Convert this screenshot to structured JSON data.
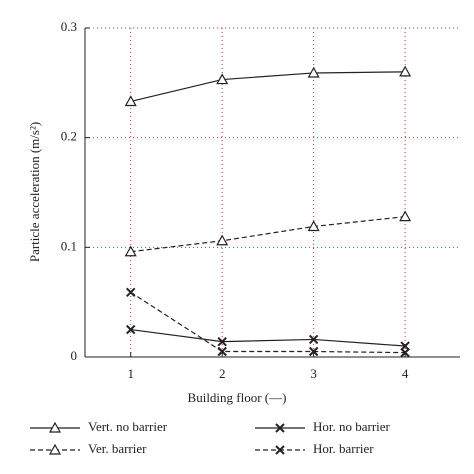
{
  "chart_data": {
    "type": "line",
    "x_label": "Building floor (—)",
    "y_label": "Particle acceleration (m/s²)",
    "x": [
      1,
      2,
      3,
      4
    ],
    "xlim": [
      0.5,
      4.6
    ],
    "xticks": [
      1,
      2,
      3,
      4
    ],
    "ylim": [
      0,
      0.3
    ],
    "yticks": [
      0,
      0.1,
      0.2,
      0.3
    ],
    "grid": true,
    "grid_color": "#c0392b",
    "series": [
      {
        "name": "Vert. no barrier",
        "color": "#222222",
        "dashed": false,
        "marker": "triangle",
        "values": [
          0.233,
          0.253,
          0.259,
          0.26
        ]
      },
      {
        "name": "Hor. no barrier",
        "color": "#222222",
        "dashed": false,
        "marker": "cross",
        "values": [
          0.025,
          0.014,
          0.016,
          0.01
        ]
      },
      {
        "name": "Ver. barrier",
        "color": "#222222",
        "dashed": true,
        "marker": "triangle",
        "values": [
          0.096,
          0.106,
          0.119,
          0.128
        ]
      },
      {
        "name": "Hor. barrier",
        "color": "#222222",
        "dashed": true,
        "marker": "cross",
        "values": [
          0.059,
          0.005,
          0.005,
          0.004
        ]
      }
    ]
  }
}
